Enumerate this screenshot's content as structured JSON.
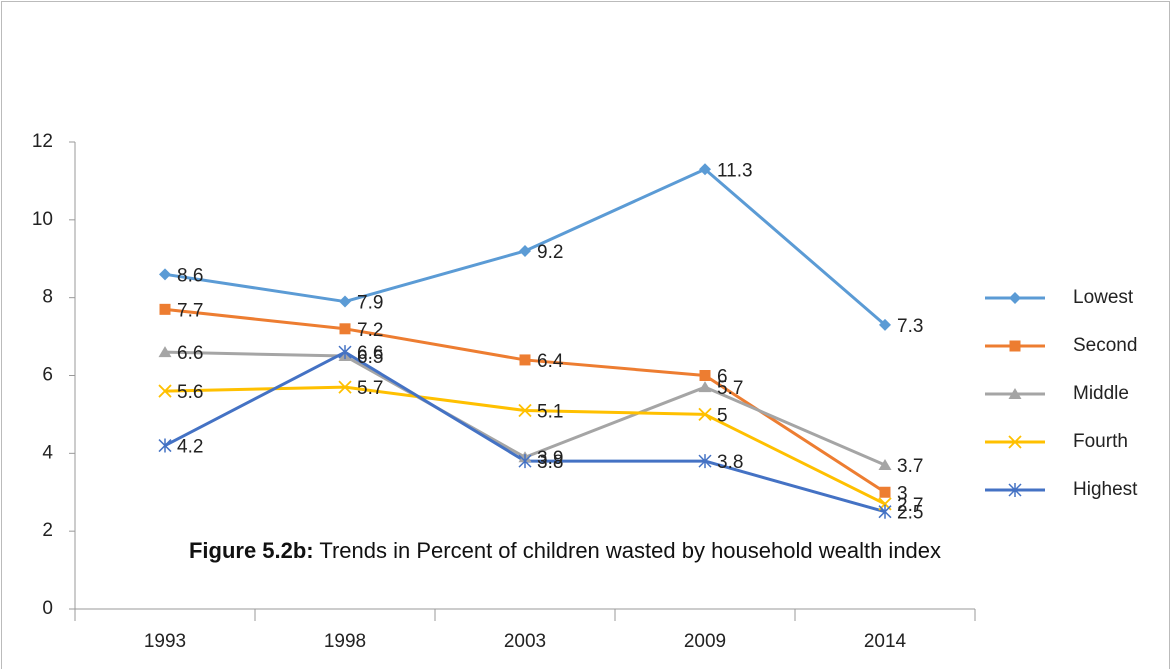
{
  "chart_data": {
    "type": "line",
    "title_prefix": "Figure 5.2b:",
    "title": "Trends in Percent of children wasted by household wealth index",
    "categories": [
      "1993",
      "1998",
      "2003",
      "2009",
      "2014"
    ],
    "series": [
      {
        "name": "Lowest",
        "color": "#5b9bd5",
        "marker": "diamond",
        "values": [
          8.6,
          7.9,
          9.2,
          11.3,
          7.3
        ]
      },
      {
        "name": "Second",
        "color": "#ed7d31",
        "marker": "square",
        "values": [
          7.7,
          7.2,
          6.4,
          6,
          3
        ]
      },
      {
        "name": "Middle",
        "color": "#a5a5a5",
        "marker": "triangle",
        "values": [
          6.6,
          6.5,
          3.9,
          5.7,
          3.7
        ]
      },
      {
        "name": "Fourth",
        "color": "#ffc000",
        "marker": "x",
        "values": [
          5.6,
          5.7,
          5.1,
          5,
          2.7
        ]
      },
      {
        "name": "Highest",
        "color": "#4472c4",
        "marker": "star",
        "values": [
          4.2,
          6.6,
          3.8,
          3.8,
          2.5
        ]
      }
    ],
    "ylim": [
      0,
      12
    ],
    "yticks": [
      0,
      2,
      4,
      6,
      8,
      10,
      12
    ],
    "grid": false,
    "legend": "right",
    "data_labels": true
  }
}
